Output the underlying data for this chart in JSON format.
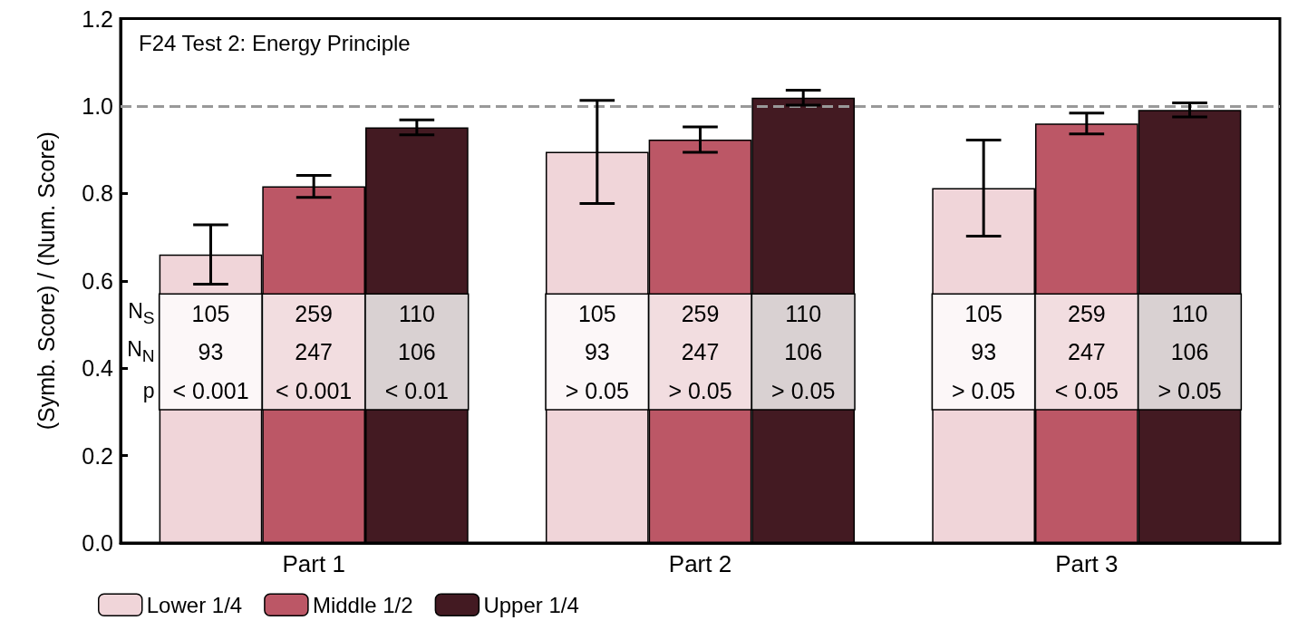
{
  "chart_data": {
    "type": "bar",
    "title": "F24 Test 2: Energy Principle",
    "ylabel": "(Symb. Score) / (Num. Score)",
    "categories": [
      "Part 1",
      "Part 2",
      "Part 3"
    ],
    "series": [
      {
        "name": "Lower 1/4",
        "color": "#f0d5d9",
        "values": [
          0.66,
          0.895,
          0.812
        ],
        "errors": [
          0.068,
          0.118,
          0.11
        ]
      },
      {
        "name": "Middle 1/2",
        "color": "#bc5766",
        "values": [
          0.816,
          0.923,
          0.96
        ],
        "errors": [
          0.025,
          0.029,
          0.024
        ]
      },
      {
        "name": "Upper 1/4",
        "color": "#431a22",
        "values": [
          0.951,
          1.019,
          0.991
        ],
        "errors": [
          0.017,
          0.017,
          0.016
        ]
      }
    ],
    "ylim": [
      0,
      1.2
    ],
    "yticks": [
      {
        "value": 0,
        "label": "0.0"
      },
      {
        "value": 0.2,
        "label": "0.2"
      },
      {
        "value": 0.4,
        "label": "0.4"
      },
      {
        "value": 0.6,
        "label": "0.6"
      },
      {
        "value": 0.8,
        "label": "0.8"
      },
      {
        "value": 1,
        "label": "1.0"
      },
      {
        "value": 1.2,
        "label": "1.2"
      }
    ],
    "ref_lines": [
      {
        "axis": "y",
        "value": 1,
        "color": "#999999",
        "line_style": "dashed"
      }
    ],
    "legend": "bottom left",
    "grid": false,
    "annotations": [
      "N$_{S}$",
      "N$_{N}$",
      "p",
      "105",
      "93",
      "< 0.001",
      "259",
      "247",
      "< 0.001",
      "110",
      "106",
      "< 0.01",
      "105",
      "93",
      "> 0.05",
      "259",
      "247",
      "> 0.05",
      "110",
      "106",
      "> 0.05",
      "105",
      "93",
      "> 0.05",
      "259",
      "247",
      "< 0.05",
      "110",
      "106",
      "> 0.05"
    ]
  }
}
